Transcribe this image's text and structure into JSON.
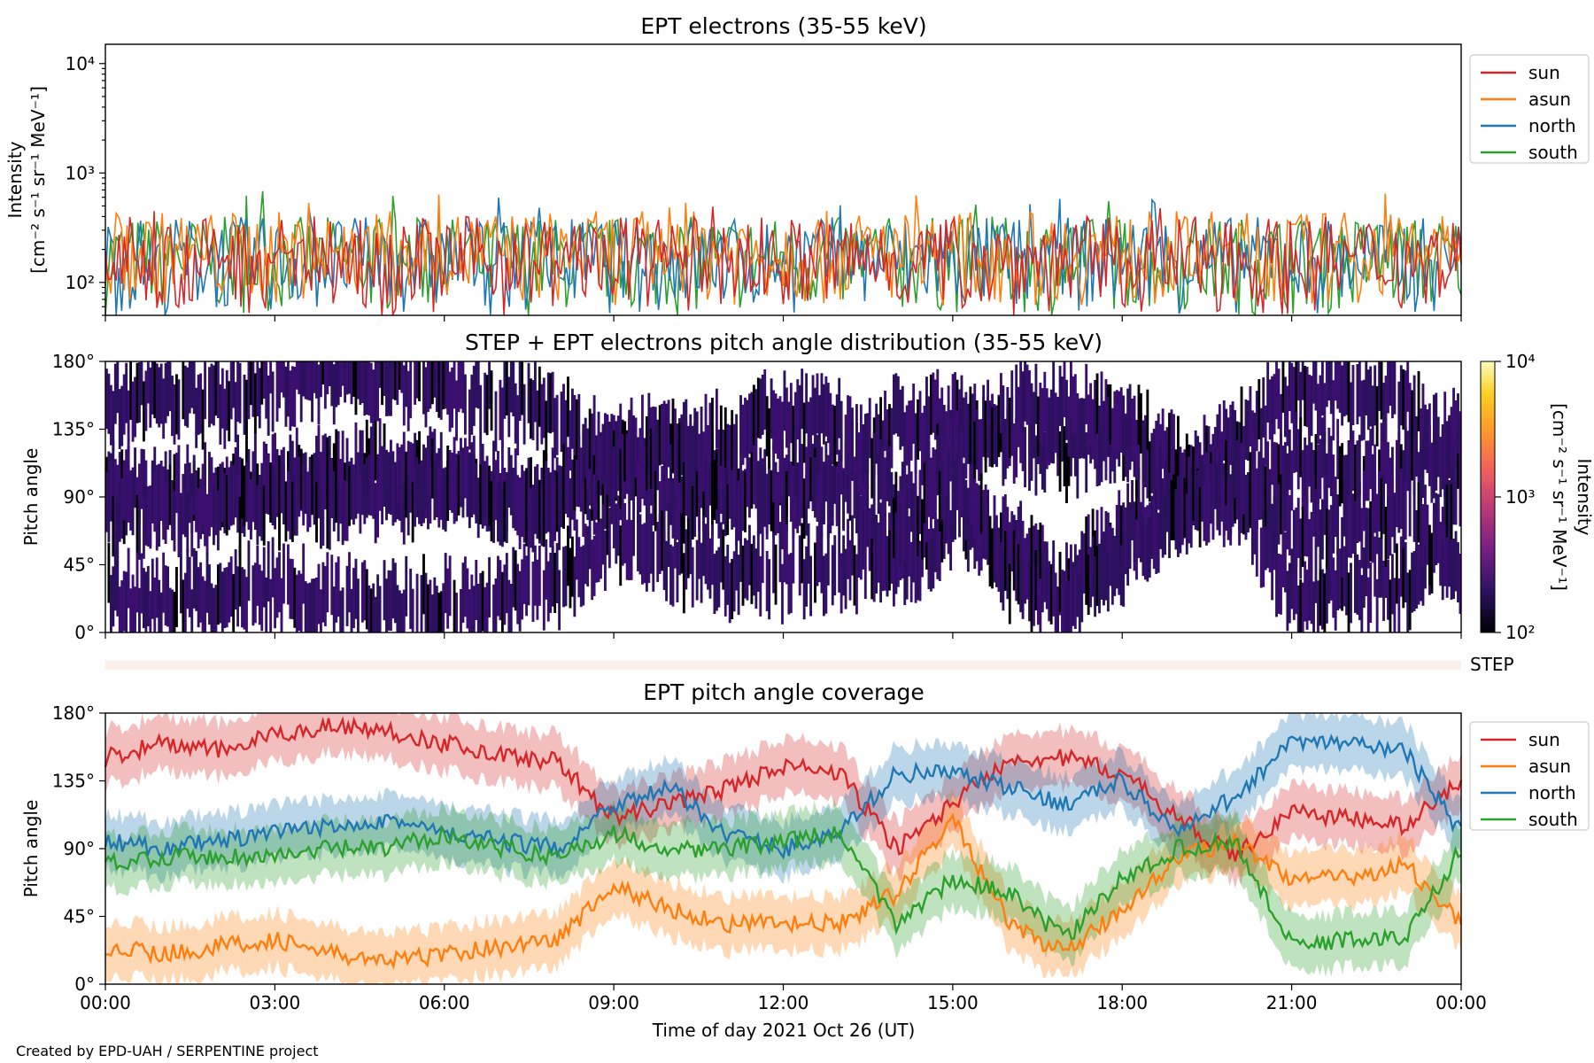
{
  "footer": "Created by EPD-UAH / SERPENTINE project",
  "colors": {
    "sun": "#d62728",
    "asun": "#ff7f0e",
    "north": "#1f77b4",
    "south": "#2ca02c",
    "step_bar": "#fdf0ea",
    "pad": "#2b0b4a"
  },
  "chart_data": [
    {
      "type": "line",
      "title": "EPT electrons (35-55 keV)",
      "ylabel": "Intensity",
      "ylabel_units": "[cm⁻² s⁻¹ sr⁻¹ MeV⁻¹]",
      "yscale": "log",
      "ylim": [
        50,
        15000
      ],
      "yticks": [
        "10²",
        "10³",
        "10⁴"
      ],
      "xlim": [
        "2021-10-26 00:00",
        "2021-10-27 00:00"
      ],
      "legend": {
        "position": "outside-top-right",
        "entries": [
          "sun",
          "asun",
          "north",
          "south"
        ]
      },
      "series": [
        {
          "name": "sun",
          "typical_range": [
            50,
            400
          ],
          "peak": 500
        },
        {
          "name": "asun",
          "typical_range": [
            60,
            450
          ],
          "peak": 680
        },
        {
          "name": "north",
          "typical_range": [
            50,
            400
          ],
          "peak": 600
        },
        {
          "name": "south",
          "typical_range": [
            50,
            400
          ],
          "peak": 700
        }
      ]
    },
    {
      "type": "heatmap",
      "title": "STEP + EPT electrons pitch angle distribution (35-55 keV)",
      "ylabel": "Pitch angle",
      "ylim": [
        0,
        180
      ],
      "yticks": [
        "0°",
        "45°",
        "90°",
        "135°",
        "180°"
      ],
      "xlim": [
        "2021-10-26 00:00",
        "2021-10-27 00:00"
      ],
      "colorbar": {
        "label": "Intensity",
        "units": "[cm⁻² s⁻¹ sr⁻¹ MeV⁻¹]",
        "scale": "log",
        "range": [
          100,
          10000
        ],
        "ticks": [
          "10²",
          "10³",
          "10⁴"
        ]
      },
      "side_label": "STEP"
    },
    {
      "type": "line",
      "title": "EPT pitch angle coverage",
      "ylabel": "Pitch angle",
      "ylim": [
        0,
        180
      ],
      "yticks": [
        "0°",
        "45°",
        "90°",
        "135°",
        "180°"
      ],
      "xlabel": "Time of day 2021 Oct 26 (UT)",
      "xticks": [
        "00:00",
        "03:00",
        "06:00",
        "09:00",
        "12:00",
        "15:00",
        "18:00",
        "21:00",
        "00:00"
      ],
      "legend": {
        "position": "outside-top-right",
        "entries": [
          "sun",
          "asun",
          "north",
          "south"
        ]
      },
      "x_hours": [
        0,
        1,
        2,
        3,
        4,
        5,
        6,
        7,
        8,
        9,
        10,
        11,
        12,
        13,
        14,
        15,
        16,
        17,
        18,
        19,
        20,
        21,
        22,
        23,
        24
      ],
      "band_halfwidth": 18,
      "series": [
        {
          "name": "sun",
          "values": [
            150,
            160,
            155,
            165,
            172,
            168,
            160,
            152,
            148,
            110,
            120,
            130,
            145,
            140,
            90,
            120,
            150,
            150,
            140,
            110,
            85,
            115,
            110,
            105,
            135
          ]
        },
        {
          "name": "asun",
          "values": [
            25,
            20,
            25,
            30,
            20,
            15,
            20,
            25,
            30,
            65,
            50,
            40,
            40,
            40,
            60,
            110,
            40,
            20,
            50,
            85,
            95,
            70,
            70,
            80,
            40
          ]
        },
        {
          "name": "north",
          "values": [
            95,
            90,
            95,
            100,
            105,
            110,
            100,
            95,
            90,
            120,
            130,
            100,
            90,
            100,
            140,
            140,
            130,
            120,
            135,
            100,
            125,
            160,
            160,
            155,
            100
          ]
        },
        {
          "name": "south",
          "values": [
            80,
            85,
            85,
            85,
            90,
            90,
            100,
            90,
            85,
            100,
            90,
            90,
            95,
            100,
            40,
            70,
            60,
            30,
            70,
            90,
            95,
            25,
            30,
            30,
            90
          ]
        }
      ]
    }
  ]
}
